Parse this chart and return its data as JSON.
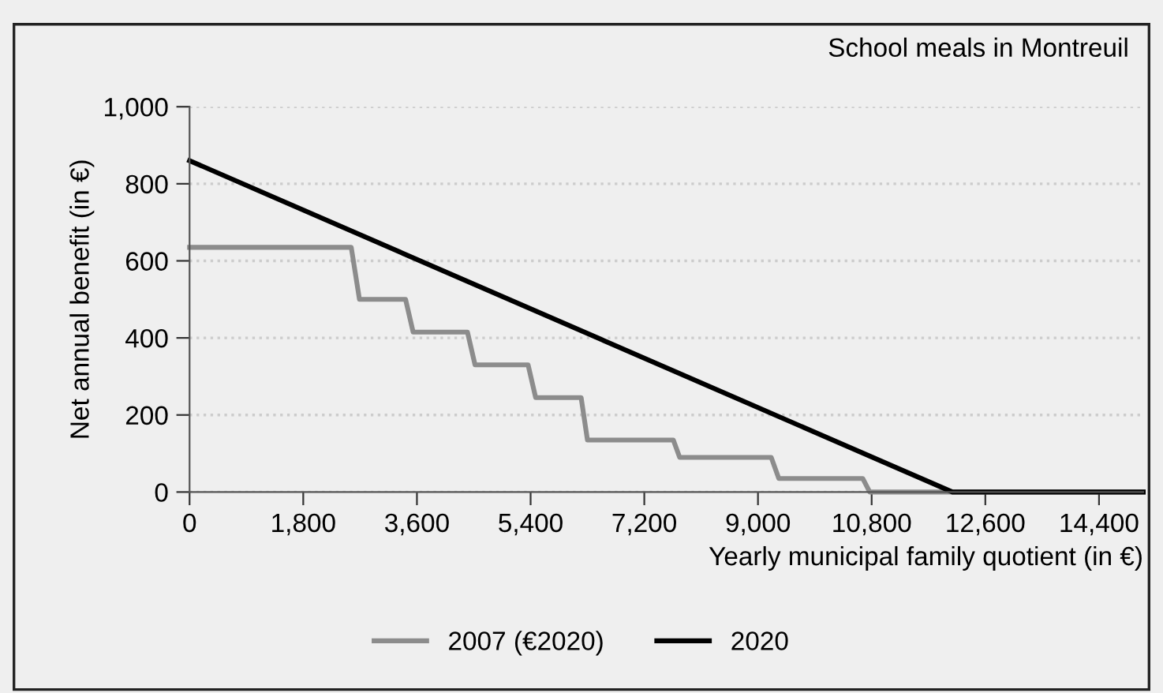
{
  "chart_data": {
    "type": "line",
    "xlabel": "Yearly municipal family quotient (in €)",
    "ylabel": "Net annual benefit (in €)",
    "annotations": [
      "School meals in Montreuil"
    ],
    "series": [
      {
        "name": "2007 (€2020)",
        "color": "#8c8c8c",
        "x": [
          0,
          2560,
          2690,
          3420,
          3540,
          4400,
          4520,
          5360,
          5480,
          6200,
          6300,
          7660,
          7760,
          9210,
          9330,
          10660,
          10770,
          15100
        ],
        "values": [
          635,
          635,
          500,
          500,
          415,
          415,
          330,
          330,
          245,
          245,
          135,
          135,
          90,
          90,
          35,
          35,
          0,
          0
        ]
      },
      {
        "name": "2020",
        "color": "#000000",
        "x": [
          0,
          12080,
          15100
        ],
        "values": [
          860,
          0,
          0
        ]
      }
    ],
    "xlim": [
      0,
      15100
    ],
    "xticks": [
      {
        "value": 0,
        "label": "0"
      },
      {
        "value": 1800,
        "label": "1,800"
      },
      {
        "value": 3600,
        "label": "3,600"
      },
      {
        "value": 5400,
        "label": "5,400"
      },
      {
        "value": 7200,
        "label": "7,200"
      },
      {
        "value": 9000,
        "label": "9,000"
      },
      {
        "value": 10800,
        "label": "10,800"
      },
      {
        "value": 12600,
        "label": "12,600"
      },
      {
        "value": 14400,
        "label": "14,400"
      }
    ],
    "ylim": [
      0,
      1000
    ],
    "yticks": [
      0,
      200,
      400,
      600,
      800,
      {
        "value": 1000,
        "label": "1,000"
      }
    ],
    "grid": "y",
    "legend": "bottom",
    "marker": "none",
    "line_style": "solid"
  }
}
